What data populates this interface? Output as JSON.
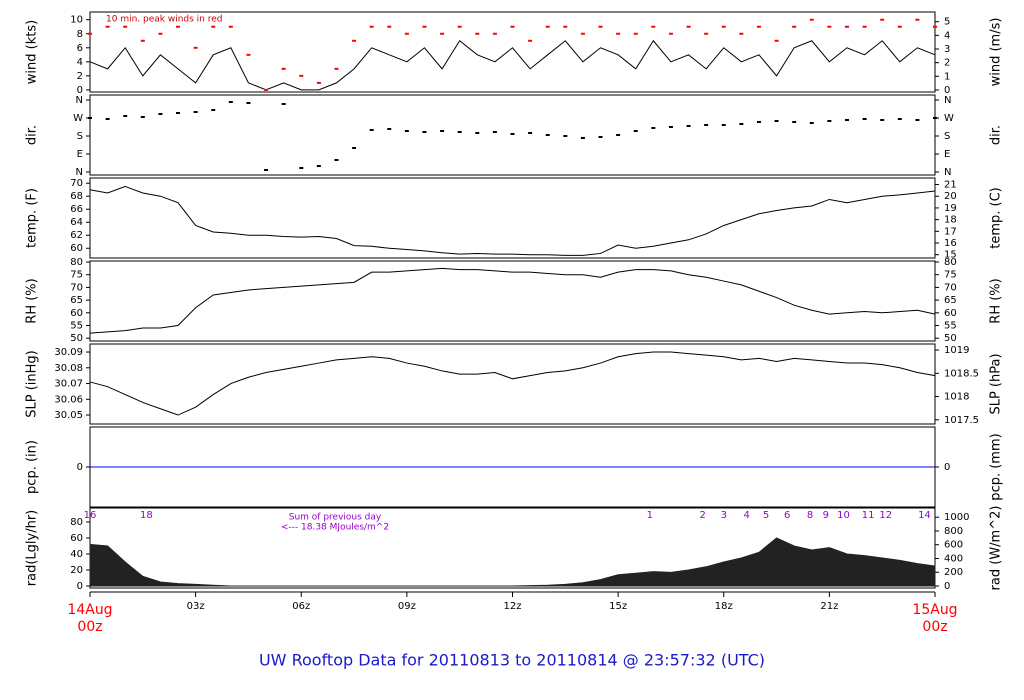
{
  "title": "UW Rooftop Data for 20110813  to  20110814 @ 23:57:32  (UTC)",
  "x": [
    0,
    0.5,
    1,
    1.5,
    2,
    2.5,
    3,
    3.5,
    4,
    4.5,
    5,
    5.5,
    6,
    6.5,
    7,
    7.5,
    8,
    8.5,
    9,
    9.5,
    10,
    10.5,
    11,
    11.5,
    12,
    12.5,
    13,
    13.5,
    14,
    14.5,
    15,
    15.5,
    16,
    16.5,
    17,
    17.5,
    18,
    18.5,
    19,
    19.5,
    20,
    20.5,
    21,
    21.5,
    22,
    22.5,
    23,
    23.5,
    24
  ],
  "xlim": [
    0,
    24
  ],
  "xticks": [
    {
      "value": 3,
      "label": "03z"
    },
    {
      "value": 6,
      "label": "06z"
    },
    {
      "value": 9,
      "label": "09z"
    },
    {
      "value": 12,
      "label": "12z"
    },
    {
      "value": 15,
      "label": "15z"
    },
    {
      "value": 18,
      "label": "18z"
    },
    {
      "value": 21,
      "label": "21z"
    }
  ],
  "x_edges": [
    {
      "value": 0,
      "date": "14Aug",
      "time": "00z",
      "color": "#ff0000"
    },
    {
      "value": 24,
      "date": "15Aug",
      "time": "00z",
      "color": "#ff0000"
    }
  ],
  "chart_data": [
    {
      "type": "line",
      "ylabel": "wind (kts)",
      "y2label": "wind (m/s)",
      "annotation": "10 min. peak winds in red",
      "annotation_color": "#cc0000",
      "ylim": [
        -0.3,
        11.1
      ],
      "yticks": [
        0,
        2,
        4,
        6,
        8,
        10
      ],
      "y2lim": [
        -0.15,
        5.71
      ],
      "y2ticks": [
        0,
        1,
        2,
        3,
        4,
        5
      ],
      "series": [
        {
          "style": "line",
          "color": "#000000",
          "values": [
            4,
            3,
            6,
            2,
            5,
            3,
            1,
            5,
            6,
            1,
            0,
            1,
            0,
            0,
            1,
            3,
            6,
            5,
            4,
            6,
            3,
            7,
            5,
            4,
            6,
            3,
            5,
            7,
            4,
            6,
            5,
            3,
            7,
            4,
            5,
            3,
            6,
            4,
            5,
            2,
            6,
            7,
            4,
            6,
            5,
            7,
            4,
            6,
            5
          ]
        },
        {
          "style": "points",
          "color": "#ff0000",
          "values": [
            8,
            9,
            9,
            7,
            8,
            9,
            6,
            9,
            9,
            5,
            0,
            3,
            2,
            1,
            3,
            7,
            9,
            9,
            8,
            9,
            8,
            9,
            8,
            8,
            9,
            7,
            9,
            9,
            8,
            9,
            8,
            8,
            9,
            8,
            9,
            8,
            9,
            8,
            9,
            7,
            9,
            10,
            9,
            9,
            9,
            10,
            9,
            10,
            9
          ]
        }
      ]
    },
    {
      "type": "scatter",
      "ylabel": "dir.",
      "y2label": "dir.",
      "ylim": [
        -15,
        385
      ],
      "yticks": [
        {
          "value": 0,
          "label": "N"
        },
        {
          "value": 90,
          "label": "E"
        },
        {
          "value": 180,
          "label": "S"
        },
        {
          "value": 270,
          "label": "W"
        },
        {
          "value": 360,
          "label": "N"
        }
      ],
      "y2lim": [
        -15,
        385
      ],
      "y2ticks": [
        {
          "value": 0,
          "label": "N"
        },
        {
          "value": 90,
          "label": "E"
        },
        {
          "value": 180,
          "label": "S"
        },
        {
          "value": 270,
          "label": "W"
        },
        {
          "value": 360,
          "label": "N"
        }
      ],
      "series": [
        {
          "style": "points",
          "color": "#000000",
          "values": [
            270,
            265,
            280,
            275,
            290,
            295,
            300,
            310,
            350,
            345,
            10,
            340,
            20,
            30,
            60,
            120,
            210,
            215,
            205,
            200,
            205,
            200,
            195,
            200,
            190,
            195,
            185,
            180,
            170,
            175,
            185,
            205,
            220,
            225,
            230,
            235,
            235,
            240,
            250,
            255,
            250,
            245,
            255,
            260,
            265,
            260,
            265,
            260,
            270
          ]
        }
      ]
    },
    {
      "type": "line",
      "ylabel": "temp. (F)",
      "y2label": "temp. (C)",
      "ylim": [
        58.5,
        70.8
      ],
      "yticks": [
        60,
        62,
        64,
        66,
        68,
        70
      ],
      "y2lim": [
        14.72,
        21.56
      ],
      "y2ticks": [
        15,
        16,
        17,
        18,
        19,
        20,
        21
      ],
      "series": [
        {
          "style": "line",
          "color": "#000000",
          "values": [
            69,
            68.5,
            69.5,
            68.5,
            68,
            67,
            63.5,
            62.5,
            62.3,
            62,
            62,
            61.8,
            61.7,
            61.8,
            61.5,
            60.4,
            60.3,
            60,
            59.8,
            59.6,
            59.3,
            59.1,
            59.2,
            59.1,
            59.1,
            59,
            59,
            58.9,
            58.9,
            59.2,
            60.5,
            60,
            60.3,
            60.8,
            61.3,
            62.2,
            63.5,
            64.4,
            65.3,
            65.8,
            66.2,
            66.5,
            67.5,
            67,
            67.5,
            68,
            68.2,
            68.5,
            68.8
          ]
        }
      ]
    },
    {
      "type": "line",
      "ylabel": "RH (%)",
      "y2label": "RH (%)",
      "ylim": [
        48.9,
        80.4
      ],
      "yticks": [
        50,
        55,
        60,
        65,
        70,
        75,
        80
      ],
      "y2lim": [
        48.9,
        80.4
      ],
      "y2ticks": [
        50,
        55,
        60,
        65,
        70,
        75,
        80
      ],
      "series": [
        {
          "style": "line",
          "color": "#000000",
          "values": [
            52,
            52.5,
            53,
            54,
            54,
            55,
            62,
            67,
            68,
            69,
            69.5,
            70,
            70.5,
            71,
            71.5,
            72,
            76,
            76,
            76.5,
            77,
            77.5,
            77,
            77,
            76.5,
            76,
            76,
            75.5,
            75,
            75,
            74,
            76,
            77,
            77,
            76.5,
            75,
            74,
            72.5,
            71,
            68.5,
            66,
            63,
            61,
            59.5,
            60,
            60.5,
            60,
            60.5,
            61,
            59.5
          ]
        }
      ]
    },
    {
      "type": "line",
      "ylabel": "SLP (inHg)",
      "y2label": "SLP (hPa)",
      "ylim": [
        30.0443,
        30.0951
      ],
      "yticks": [
        30.05,
        30.06,
        30.07,
        30.08,
        30.09
      ],
      "y2lim": [
        1017.41,
        1019.13
      ],
      "y2ticks": [
        1017.5,
        1018,
        1018.5,
        1019
      ],
      "series": [
        {
          "style": "line",
          "color": "#000000",
          "values": [
            30.071,
            30.068,
            30.063,
            30.058,
            30.054,
            30.05,
            30.055,
            30.063,
            30.07,
            30.074,
            30.077,
            30.079,
            30.081,
            30.083,
            30.085,
            30.086,
            30.087,
            30.086,
            30.083,
            30.081,
            30.078,
            30.076,
            30.076,
            30.077,
            30.073,
            30.075,
            30.077,
            30.078,
            30.08,
            30.083,
            30.087,
            30.089,
            30.09,
            30.09,
            30.089,
            30.088,
            30.087,
            30.085,
            30.086,
            30.084,
            30.086,
            30.085,
            30.084,
            30.083,
            30.083,
            30.082,
            30.08,
            30.077,
            30.075
          ]
        }
      ]
    },
    {
      "type": "line",
      "ylabel": "pcp. (in)",
      "y2label": "pcp. (mm)",
      "ylim": [
        -1,
        1
      ],
      "yticks": [
        0
      ],
      "y2lim": [
        -1,
        1
      ],
      "y2ticks": [
        0
      ],
      "series": [
        {
          "style": "line",
          "color": "#0000ff",
          "x": [
            0,
            24
          ],
          "values": [
            0,
            0
          ]
        }
      ]
    },
    {
      "type": "area",
      "ylabel": "rad(Lgly/hr)",
      "y2label": "rad (W/m^2)",
      "ylim": [
        -2.5,
        97.5
      ],
      "yticks": [
        0,
        20,
        40,
        60,
        80
      ],
      "y2lim": [
        -29,
        1134
      ],
      "y2ticks": [
        0,
        200,
        400,
        600,
        800,
        1000
      ],
      "notes": [
        "Sum of previous day",
        "<--- 18.38 MJoules/m^2"
      ],
      "notes_color": "#9900cc",
      "markers": [
        {
          "x": 0,
          "label": "16"
        },
        {
          "x": 1.6,
          "label": "18"
        },
        {
          "x": 15.9,
          "label": "1"
        },
        {
          "x": 17.4,
          "label": "2"
        },
        {
          "x": 18.0,
          "label": "3"
        },
        {
          "x": 18.65,
          "label": "4"
        },
        {
          "x": 19.2,
          "label": "5"
        },
        {
          "x": 19.8,
          "label": "6"
        },
        {
          "x": 20.45,
          "label": "8"
        },
        {
          "x": 20.9,
          "label": "9"
        },
        {
          "x": 21.4,
          "label": "10"
        },
        {
          "x": 22.1,
          "label": "11"
        },
        {
          "x": 22.6,
          "label": "12"
        },
        {
          "x": 23.7,
          "label": "14"
        }
      ],
      "series": [
        {
          "style": "area",
          "color": "#222222",
          "values": [
            52,
            50,
            30,
            12,
            5,
            3,
            2,
            1,
            0,
            0,
            0,
            0,
            0,
            0,
            0,
            0,
            0,
            0,
            0,
            0,
            0,
            0,
            0,
            0,
            0,
            0.5,
            1,
            2,
            4,
            8,
            14,
            16,
            18,
            17,
            20,
            24,
            30,
            35,
            42,
            60,
            50,
            45,
            48,
            40,
            38,
            35,
            32,
            28,
            25
          ]
        }
      ]
    }
  ]
}
